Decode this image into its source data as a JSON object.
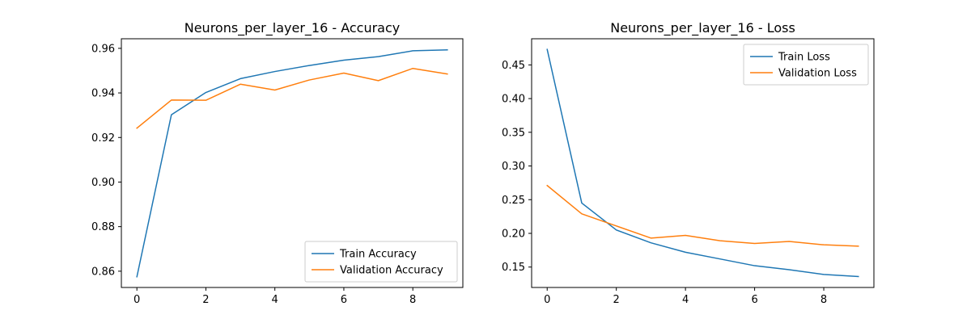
{
  "chart_data": [
    {
      "type": "line",
      "title": "Neurons_per_layer_16 - Accuracy",
      "xlabel": "",
      "ylabel": "",
      "x": [
        0,
        1,
        2,
        3,
        4,
        5,
        6,
        7,
        8,
        9
      ],
      "xlim": [
        -0.45,
        9.45
      ],
      "ylim": [
        0.8527,
        0.9643
      ],
      "xticks": [
        0,
        2,
        4,
        6,
        8
      ],
      "yticks": [
        0.86,
        0.88,
        0.9,
        0.92,
        0.94,
        0.96
      ],
      "ytick_labels": [
        "0.86",
        "0.88",
        "0.90",
        "0.92",
        "0.94",
        "0.96"
      ],
      "legend_position": "lower-right",
      "grid": false,
      "series": [
        {
          "name": "Train Accuracy",
          "color": "#1f77b4",
          "values": [
            0.8575,
            0.9302,
            0.9402,
            0.9464,
            0.9496,
            0.9523,
            0.9547,
            0.9563,
            0.9589,
            0.9593
          ]
        },
        {
          "name": "Validation Accuracy",
          "color": "#ff7f0e",
          "values": [
            0.9242,
            0.9368,
            0.9367,
            0.9439,
            0.9413,
            0.9458,
            0.9489,
            0.9455,
            0.951,
            0.9485
          ]
        }
      ]
    },
    {
      "type": "line",
      "title": "Neurons_per_layer_16 - Loss",
      "xlabel": "",
      "ylabel": "",
      "x": [
        0,
        1,
        2,
        3,
        4,
        5,
        6,
        7,
        8,
        9
      ],
      "xlim": [
        -0.45,
        9.45
      ],
      "ylim": [
        0.1197,
        0.4888
      ],
      "xticks": [
        0,
        2,
        4,
        6,
        8
      ],
      "yticks": [
        0.15,
        0.2,
        0.25,
        0.3,
        0.35,
        0.4,
        0.45
      ],
      "ytick_labels": [
        "0.15",
        "0.20",
        "0.25",
        "0.30",
        "0.35",
        "0.40",
        "0.45"
      ],
      "legend_position": "upper-right",
      "grid": false,
      "series": [
        {
          "name": "Train Loss",
          "color": "#1f77b4",
          "values": [
            0.473,
            0.245,
            0.205,
            0.186,
            0.172,
            0.162,
            0.152,
            0.146,
            0.139,
            0.136
          ]
        },
        {
          "name": "Validation Loss",
          "color": "#ff7f0e",
          "values": [
            0.271,
            0.229,
            0.211,
            0.193,
            0.197,
            0.189,
            0.185,
            0.188,
            0.183,
            0.181
          ]
        }
      ]
    }
  ]
}
